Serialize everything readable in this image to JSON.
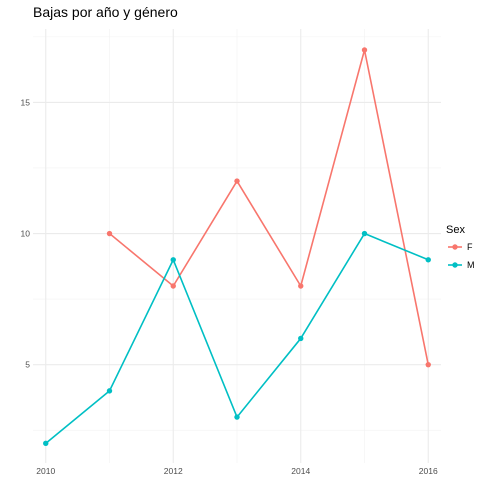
{
  "chart_data": {
    "type": "line",
    "title": "Bajas por año y género",
    "xlabel": "",
    "ylabel": "",
    "x_ticks": [
      "2010",
      "2012",
      "2014",
      "2016"
    ],
    "y_ticks": [
      "5",
      "10",
      "15"
    ],
    "xlim": [
      2009.8,
      2016.2
    ],
    "ylim": [
      1.25,
      17.8
    ],
    "grid": true,
    "legend_title": "Sex",
    "legend_position": "right",
    "series": [
      {
        "name": "F",
        "color": "#F8766D",
        "x": [
          2011,
          2012,
          2013,
          2014,
          2015,
          2016
        ],
        "y": [
          10,
          8,
          12,
          8,
          17,
          5
        ]
      },
      {
        "name": "M",
        "color": "#00BFC4",
        "x": [
          2010,
          2011,
          2012,
          2013,
          2014,
          2015,
          2016
        ],
        "y": [
          2,
          4,
          9,
          3,
          6,
          10,
          9
        ]
      }
    ]
  }
}
